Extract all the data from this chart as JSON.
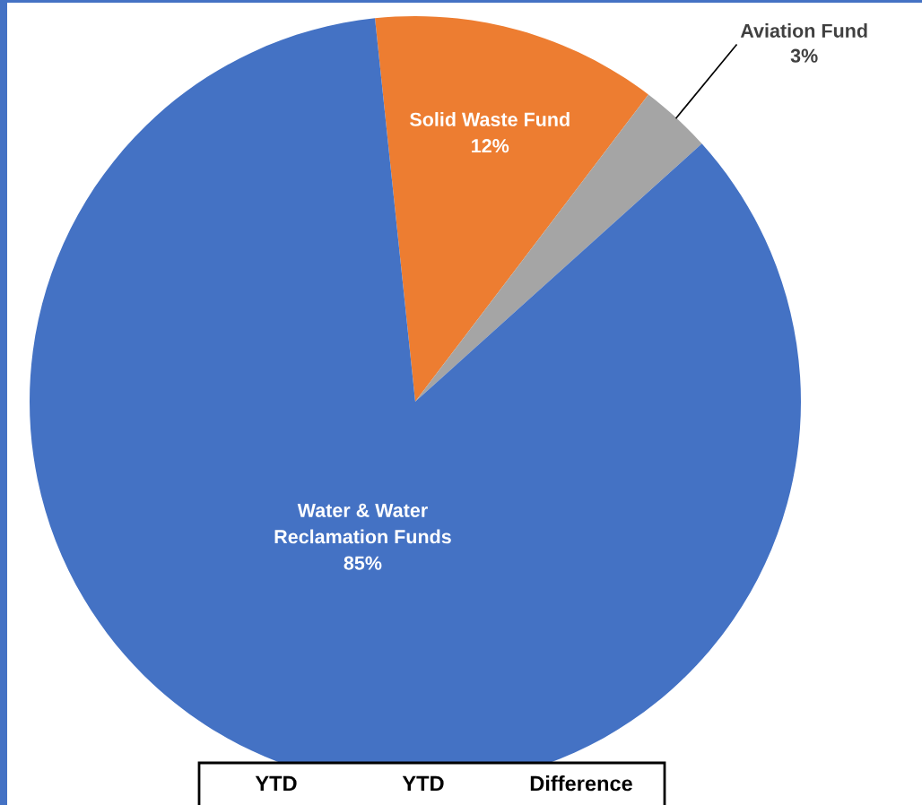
{
  "chart_data": {
    "type": "pie",
    "categories": [
      "Solid Waste Fund",
      "Aviation Fund",
      "Water & Water\nReclamation Funds"
    ],
    "values": [
      12,
      3,
      85
    ],
    "value_labels": [
      "12%",
      "3%",
      "85%"
    ],
    "colors": [
      "#ed7d31",
      "#a5a5a5",
      "#4472c4"
    ],
    "annotations": [
      "YTD",
      "YTD",
      "Difference"
    ]
  }
}
